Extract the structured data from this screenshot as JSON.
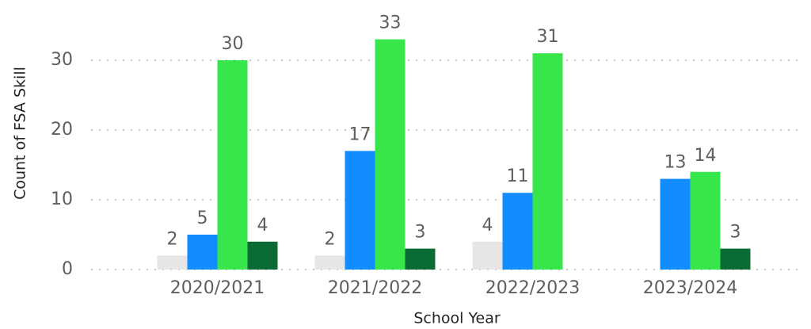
{
  "chart_data": {
    "type": "bar",
    "x_label": "School Year",
    "y_label": "Count of FSA Skill",
    "categories": [
      "2020/2021",
      "2021/2022",
      "2022/2023",
      "2023/2024"
    ],
    "series": [
      {
        "color": "#e6e6e6",
        "values": [
          2,
          2,
          4,
          null
        ]
      },
      {
        "color": "#118dff",
        "values": [
          5,
          17,
          11,
          13
        ]
      },
      {
        "color": "#37e64b",
        "values": [
          30,
          33,
          31,
          14
        ]
      },
      {
        "color": "#0b6b35",
        "values": [
          4,
          3,
          null,
          3
        ]
      }
    ],
    "ylim": [
      0,
      35
    ],
    "yticks": [
      0,
      10,
      20,
      30
    ],
    "grid": true
  }
}
